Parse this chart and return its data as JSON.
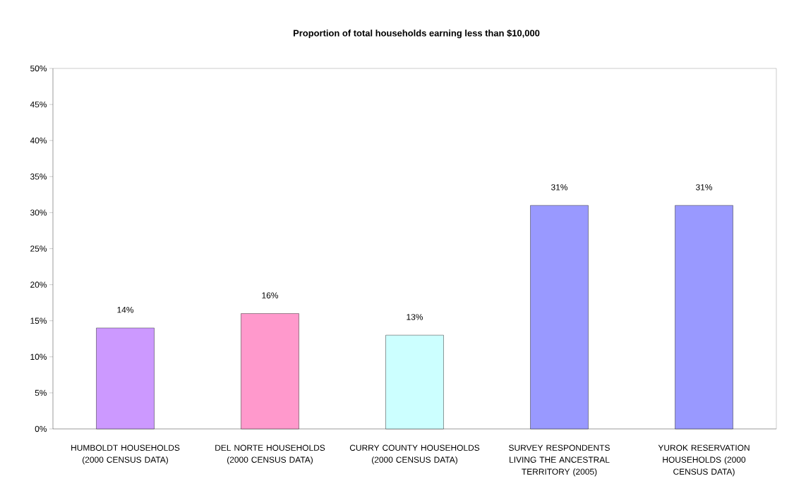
{
  "chart_data": {
    "type": "bar",
    "title": "Proportion of total households earning less than $10,000",
    "categories": [
      "HUMBOLDT HOUSEHOLDS (2000 CENSUS DATA)",
      "DEL NORTE HOUSEHOLDS (2000 CENSUS DATA)",
      "CURRY COUNTY HOUSEHOLDS (2000 CENSUS DATA)",
      "SURVEY RESPONDENTS LIVING THE ANCESTRAL TERRITORY (2005)",
      "YUROK RESERVATION HOUSEHOLDS (2000 CENSUS DATA)"
    ],
    "values": [
      14,
      16,
      13,
      31,
      31
    ],
    "value_labels": [
      "14%",
      "16%",
      "13%",
      "31%",
      "31%"
    ],
    "colors": [
      "#cc99ff",
      "#ff99cc",
      "#ccffff",
      "#9999ff",
      "#9999ff"
    ],
    "ylim": [
      0,
      50
    ],
    "yticks": [
      {
        "value": 0,
        "label": "0%"
      },
      {
        "value": 5,
        "label": "5%"
      },
      {
        "value": 10,
        "label": "10%"
      },
      {
        "value": 15,
        "label": "15%"
      },
      {
        "value": 20,
        "label": "20%"
      },
      {
        "value": 25,
        "label": "25%"
      },
      {
        "value": 30,
        "label": "30%"
      },
      {
        "value": 35,
        "label": "35%"
      },
      {
        "value": 40,
        "label": "40%"
      },
      {
        "value": 45,
        "label": "45%"
      },
      {
        "value": 50,
        "label": "50%"
      }
    ],
    "grid": false
  }
}
